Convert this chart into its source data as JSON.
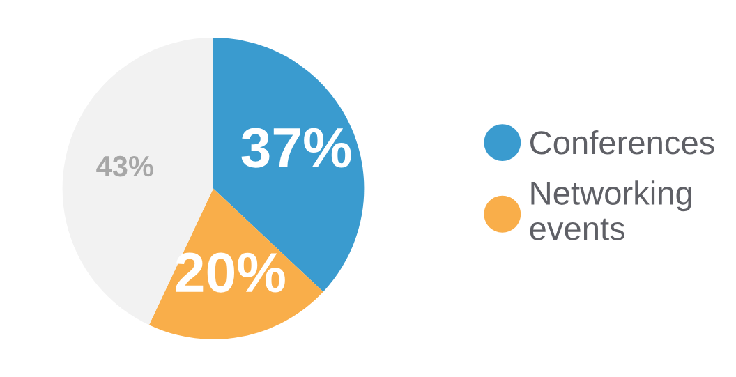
{
  "chart_data": {
    "type": "pie",
    "categories": [
      "Conferences",
      "Networking\nevents",
      null
    ],
    "values": [
      37,
      20,
      43
    ],
    "colors": [
      "#3a9bcf",
      "#f9ae4a",
      "#f2f2f2"
    ],
    "value_labels": [
      "37%",
      "20%",
      "43%"
    ],
    "legend": "right"
  }
}
